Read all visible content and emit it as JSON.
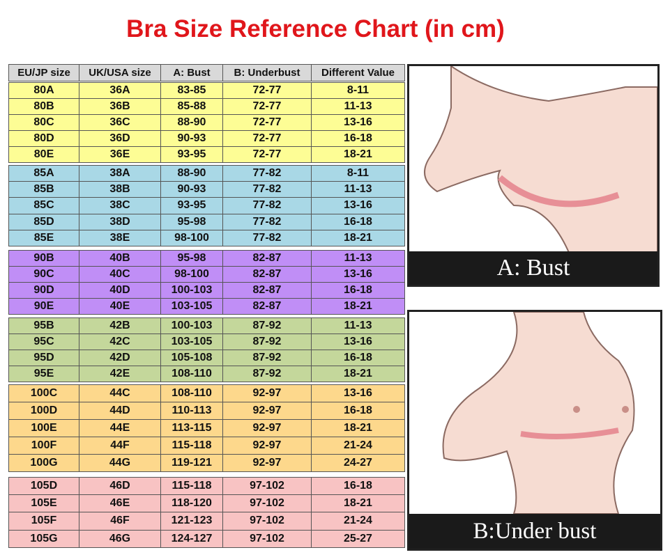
{
  "title": "Bra Size Reference Chart (in cm)",
  "table": {
    "header": [
      "EU/JP size",
      "UK/USA size",
      "A: Bust",
      "B: Underbust",
      "Different Value"
    ],
    "groups": [
      {
        "rows": [
          [
            "80A",
            "36A",
            "83-85",
            "72-77",
            "8-11"
          ],
          [
            "80B",
            "36B",
            "85-88",
            "72-77",
            "11-13"
          ],
          [
            "80C",
            "36C",
            "88-90",
            "72-77",
            "13-16"
          ],
          [
            "80D",
            "36D",
            "90-93",
            "72-77",
            "16-18"
          ],
          [
            "80E",
            "36E",
            "93-95",
            "72-77",
            "18-21"
          ]
        ]
      },
      {
        "rows": [
          [
            "85A",
            "38A",
            "88-90",
            "77-82",
            "8-11"
          ],
          [
            "85B",
            "38B",
            "90-93",
            "77-82",
            "11-13"
          ],
          [
            "85C",
            "38C",
            "93-95",
            "77-82",
            "13-16"
          ],
          [
            "85D",
            "38D",
            "95-98",
            "77-82",
            "16-18"
          ],
          [
            "85E",
            "38E",
            "98-100",
            "77-82",
            "18-21"
          ]
        ]
      },
      {
        "rows": [
          [
            "90B",
            "40B",
            "95-98",
            "82-87",
            "11-13"
          ],
          [
            "90C",
            "40C",
            "98-100",
            "82-87",
            "13-16"
          ],
          [
            "90D",
            "40D",
            "100-103",
            "82-87",
            "16-18"
          ],
          [
            "90E",
            "40E",
            "103-105",
            "82-87",
            "18-21"
          ]
        ]
      },
      {
        "rows": [
          [
            "95B",
            "42B",
            "100-103",
            "87-92",
            "11-13"
          ],
          [
            "95C",
            "42C",
            "103-105",
            "87-92",
            "13-16"
          ],
          [
            "95D",
            "42D",
            "105-108",
            "87-92",
            "16-18"
          ],
          [
            "95E",
            "42E",
            "108-110",
            "87-92",
            "18-21"
          ]
        ]
      },
      {
        "rows": [
          [
            "100C",
            "44C",
            "108-110",
            "92-97",
            "13-16"
          ],
          [
            "100D",
            "44D",
            "110-113",
            "92-97",
            "16-18"
          ],
          [
            "100E",
            "44E",
            "113-115",
            "92-97",
            "18-21"
          ],
          [
            "100F",
            "44F",
            "115-118",
            "92-97",
            "21-24"
          ],
          [
            "100G",
            "44G",
            "119-121",
            "92-97",
            "24-27"
          ]
        ]
      },
      {
        "rows": [
          [
            "105D",
            "46D",
            "115-118",
            "97-102",
            "16-18"
          ],
          [
            "105E",
            "46E",
            "118-120",
            "97-102",
            "18-21"
          ],
          [
            "105F",
            "46F",
            "121-123",
            "97-102",
            "21-24"
          ],
          [
            "105G",
            "46G",
            "124-127",
            "97-102",
            "25-27"
          ]
        ]
      }
    ]
  },
  "images": [
    {
      "label": "A: Bust"
    },
    {
      "label": "B:Under bust"
    }
  ]
}
